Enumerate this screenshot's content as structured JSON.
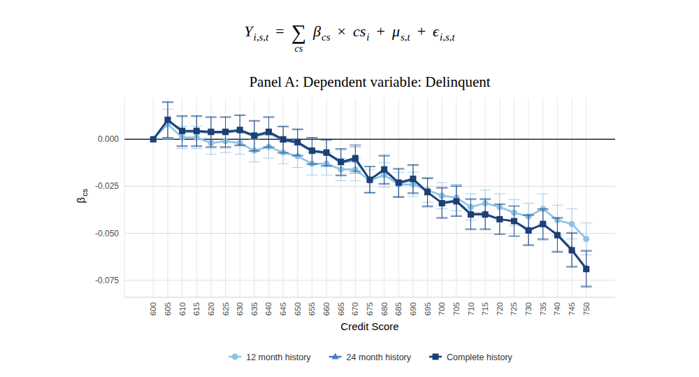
{
  "chart_data": {
    "type": "line",
    "formula": [
      {
        "text": "Y",
        "sub": "i,s,t"
      },
      {
        "text": "="
      },
      {
        "text": "∑",
        "under": "cs"
      },
      {
        "text": "β",
        "sub": "cs"
      },
      {
        "text": "×"
      },
      {
        "text": "cs",
        "sub": "i"
      },
      {
        "text": "+"
      },
      {
        "text": "μ",
        "sub": "s,t"
      },
      {
        "text": "+"
      },
      {
        "text": "ϵ",
        "sub": "i,s,t"
      }
    ],
    "title": "Panel A: Dependent variable: Delinquent",
    "xlabel": "Credit Score",
    "ylabel": {
      "text": "β",
      "sub": "cs"
    },
    "x": [
      600,
      605,
      610,
      615,
      620,
      625,
      630,
      635,
      640,
      645,
      650,
      655,
      660,
      665,
      670,
      675,
      680,
      685,
      690,
      695,
      700,
      705,
      710,
      715,
      720,
      725,
      730,
      735,
      740,
      745,
      750
    ],
    "xlim": [
      590,
      760
    ],
    "xticks": [
      600,
      605,
      610,
      615,
      620,
      625,
      630,
      635,
      640,
      645,
      650,
      655,
      660,
      665,
      670,
      675,
      680,
      685,
      690,
      695,
      700,
      705,
      710,
      715,
      720,
      725,
      730,
      735,
      740,
      745,
      750
    ],
    "ylim": [
      -0.084,
      0.022
    ],
    "yticks": [
      {
        "value": 0,
        "label": "0.000"
      },
      -0.025,
      {
        "value": -0.05,
        "label": "-0.050"
      },
      -0.075
    ],
    "hline": 0,
    "grid": true,
    "legend": "bottom",
    "series": [
      {
        "name": "12 month history",
        "color": "#8ec3e6",
        "marker": "circle",
        "values": [
          0,
          0.008,
          0.001,
          0.001,
          -0.002,
          -0.001,
          -0.002,
          -0.006,
          -0.004,
          -0.007,
          -0.009,
          -0.013,
          -0.013,
          -0.016,
          -0.016,
          -0.022,
          -0.019,
          -0.024,
          -0.024,
          -0.027,
          -0.03,
          -0.031,
          -0.036,
          -0.034,
          -0.036,
          -0.039,
          -0.041,
          -0.037,
          -0.043,
          -0.045,
          -0.053
        ],
        "errors": [
          0,
          0.008,
          0.006,
          0.006,
          0.006,
          0.006,
          0.006,
          0.006,
          0.006,
          0.006,
          0.006,
          0.006,
          0.006,
          0.006,
          0.006,
          0.006,
          0.0065,
          0.0065,
          0.0065,
          0.0065,
          0.007,
          0.007,
          0.007,
          0.007,
          0.007,
          0.007,
          0.007,
          0.008,
          0.008,
          0.008,
          0.0085
        ]
      },
      {
        "name": "24 month history",
        "color": "#4a7ec0",
        "marker": "triangle",
        "values": [
          0,
          0.01,
          0.004,
          0.004,
          0.0035,
          0.0035,
          0.0045,
          0.0015,
          0.0035,
          -0.0005,
          -0.002,
          -0.0065,
          -0.0075,
          -0.0125,
          -0.011,
          -0.0215,
          -0.0165,
          -0.0235,
          -0.0215,
          -0.0285,
          -0.0335,
          -0.0325,
          -0.0395,
          -0.0395,
          -0.0425,
          -0.0435,
          -0.048,
          -0.0455,
          -0.0505,
          -0.0585,
          -0.0685
        ],
        "errors": [
          0,
          0.0095,
          0.008,
          0.008,
          0.008,
          0.008,
          0.008,
          0.008,
          0.008,
          0.007,
          0.007,
          0.007,
          0.007,
          0.007,
          0.007,
          0.007,
          0.0075,
          0.0075,
          0.0075,
          0.0075,
          0.008,
          0.008,
          0.008,
          0.008,
          0.008,
          0.008,
          0.008,
          0.008,
          0.009,
          0.009,
          0.0095
        ]
      },
      {
        "name": "Complete history",
        "color": "#1d3f73",
        "marker": "square",
        "values": [
          0,
          0.0104,
          0.0045,
          0.0045,
          0.004,
          0.004,
          0.005,
          0.002,
          0.004,
          0,
          -0.0015,
          -0.006,
          -0.007,
          -0.012,
          -0.01,
          -0.0215,
          -0.016,
          -0.023,
          -0.021,
          -0.028,
          -0.034,
          -0.033,
          -0.04,
          -0.04,
          -0.0425,
          -0.0435,
          -0.0485,
          -0.045,
          -0.051,
          -0.059,
          -0.069
        ],
        "errors": [
          0,
          0.0095,
          0.008,
          0.008,
          0.008,
          0.008,
          0.008,
          0.008,
          0.008,
          0.007,
          0.007,
          0.007,
          0.007,
          0.007,
          0.007,
          0.007,
          0.0075,
          0.0075,
          0.0075,
          0.0075,
          0.008,
          0.008,
          0.008,
          0.008,
          0.008,
          0.008,
          0.008,
          0.008,
          0.009,
          0.009,
          0.0095
        ]
      }
    ]
  }
}
